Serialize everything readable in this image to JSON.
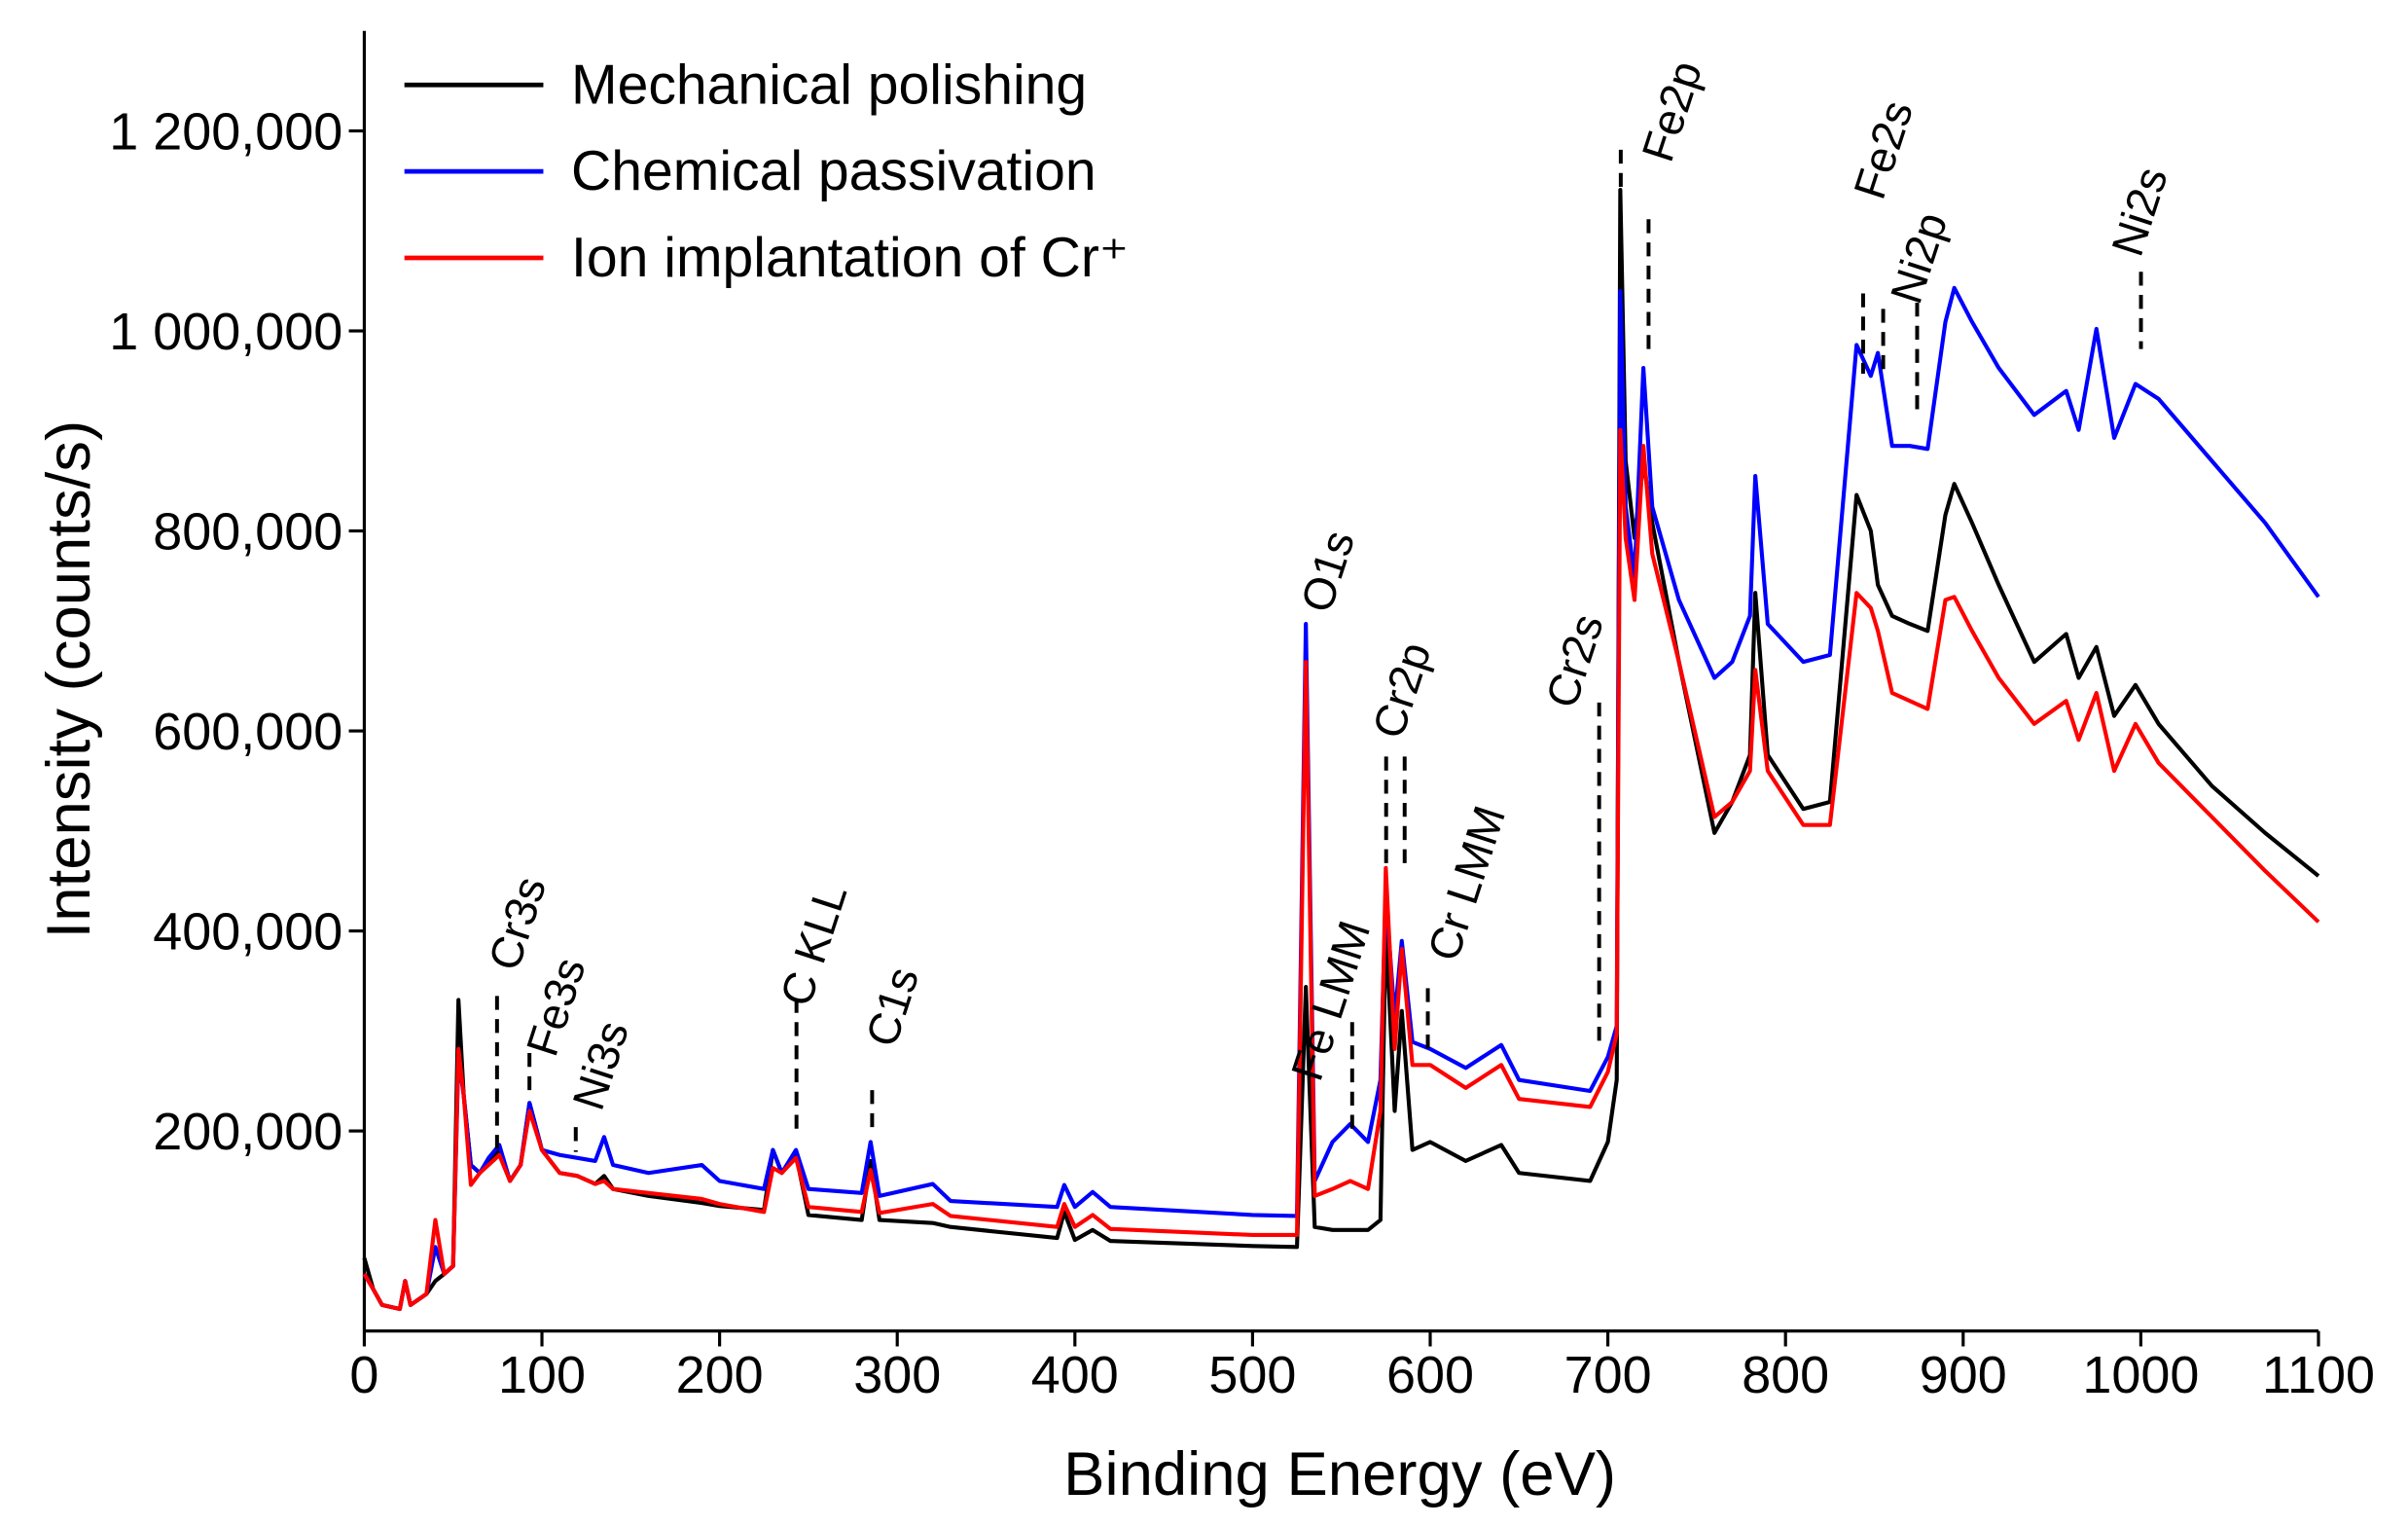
{
  "chart_data": {
    "type": "line",
    "xlabel": "Binding Energy (eV)",
    "ylabel": "Intensity (counts/s)",
    "xlim": [
      0,
      1100
    ],
    "ylim": [
      0,
      1300000
    ],
    "xticks": [
      0,
      100,
      200,
      300,
      400,
      500,
      600,
      700,
      800,
      900,
      1000,
      1100
    ],
    "yticks": [
      {
        "value": 200000,
        "label": "200,000"
      },
      {
        "value": 400000,
        "label": "400,000"
      },
      {
        "value": 600000,
        "label": "600,000"
      },
      {
        "value": 800000,
        "label": "800,000"
      },
      {
        "value": 1000000,
        "label": "1 000,000"
      },
      {
        "value": 1200000,
        "label": "1 200,000"
      }
    ],
    "legend": "upper left",
    "x": [
      0,
      5,
      10,
      20,
      23,
      26,
      35,
      40,
      45,
      50,
      53,
      56,
      60,
      65,
      70,
      76,
      82,
      88,
      93,
      100,
      110,
      120,
      130,
      135,
      140,
      160,
      190,
      200,
      225,
      230,
      235,
      243,
      250,
      280,
      285,
      290,
      320,
      330,
      390,
      394,
      400,
      410,
      420,
      500,
      525,
      530,
      535,
      545,
      555,
      565,
      572,
      575,
      580,
      584,
      590,
      600,
      620,
      640,
      650,
      690,
      700,
      705,
      707,
      710,
      715,
      720,
      725,
      740,
      760,
      770,
      780,
      783,
      790,
      810,
      825,
      840,
      848,
      852,
      860,
      870,
      880,
      890,
      895,
      905,
      920,
      940,
      958,
      965,
      975,
      985,
      997,
      1010,
      1040,
      1070,
      1100
    ],
    "series": [
      {
        "name": "Mechanical polishing",
        "color": "#000000",
        "values": [
          73000,
          42000,
          26000,
          22000,
          50000,
          26000,
          37000,
          50000,
          57000,
          65000,
          331000,
          235000,
          166000,
          158000,
          170000,
          181000,
          150000,
          166000,
          228000,
          181000,
          158000,
          155000,
          147000,
          155000,
          142000,
          135000,
          128000,
          125000,
          121000,
          181000,
          158000,
          176000,
          116000,
          111000,
          170000,
          111000,
          108000,
          104000,
          93000,
          119000,
          91000,
          101000,
          90000,
          85000,
          84000,
          344000,
          104000,
          101000,
          101000,
          101000,
          111000,
          406000,
          220000,
          320000,
          181000,
          189000,
          170000,
          186000,
          158000,
          150000,
          189000,
          251000,
          1141000,
          870000,
          793000,
          870000,
          808000,
          669000,
          498000,
          529000,
          576000,
          738000,
          576000,
          522000,
          529000,
          836000,
          800000,
          746000,
          715000,
          707000,
          700000,
          816000,
          847000,
          808000,
          746000,
          669000,
          697000,
          653000,
          684000,
          615000,
          646000,
          607000,
          545000,
          498000,
          455000
        ]
      },
      {
        "name": "Chemical passivation",
        "color": "#0000ff",
        "values": [
          57000,
          42000,
          26000,
          22000,
          50000,
          26000,
          37000,
          84000,
          57000,
          65000,
          274000,
          235000,
          166000,
          158000,
          173000,
          186000,
          150000,
          166000,
          228000,
          181000,
          176000,
          173000,
          170000,
          194000,
          166000,
          158000,
          166000,
          150000,
          142000,
          181000,
          158000,
          181000,
          142000,
          138000,
          189000,
          135000,
          147000,
          130000,
          124000,
          146000,
          124000,
          139000,
          124000,
          116000,
          115000,
          707000,
          150000,
          189000,
          207000,
          189000,
          251000,
          437000,
          313000,
          390000,
          289000,
          282000,
          263000,
          286000,
          251000,
          240000,
          274000,
          305000,
          1040000,
          824000,
          754000,
          963000,
          824000,
          731000,
          653000,
          669000,
          715000,
          855000,
          707000,
          669000,
          676000,
          986000,
          955000,
          978000,
          885000,
          885000,
          882000,
          1009000,
          1043000,
          1009000,
          963000,
          916000,
          940000,
          901000,
          1002000,
          893000,
          947000,
          932000,
          870000,
          808000,
          734000
        ]
      },
      {
        "name": "Ion implantation of Cr⁺",
        "color": "#ff0000",
        "values": [
          57000,
          42000,
          26000,
          22000,
          50000,
          26000,
          37000,
          111000,
          57000,
          65000,
          282000,
          235000,
          146000,
          158000,
          166000,
          176000,
          150000,
          166000,
          220000,
          181000,
          158000,
          155000,
          147000,
          150000,
          142000,
          138000,
          132000,
          127000,
          119000,
          163000,
          158000,
          173000,
          124000,
          119000,
          161000,
          118000,
          127000,
          115000,
          104000,
          127000,
          104000,
          116000,
          102000,
          96000,
          96000,
          669000,
          135000,
          142000,
          150000,
          142000,
          220000,
          463000,
          282000,
          382000,
          266000,
          266000,
          243000,
          266000,
          232000,
          224000,
          259000,
          297000,
          901000,
          793000,
          731000,
          885000,
          777000,
          669000,
          514000,
          529000,
          560000,
          661000,
          560000,
          506000,
          506000,
          738000,
          723000,
          700000,
          638000,
          630000,
          622000,
          731000,
          734000,
          700000,
          653000,
          607000,
          630000,
          591000,
          638000,
          560000,
          607000,
          568000,
          514000,
          460000,
          409000
        ]
      }
    ],
    "annotations": [
      {
        "text": "Cr3s"
      },
      {
        "text": "Fe3s"
      },
      {
        "text": "Ni3s"
      },
      {
        "text": "C KLL"
      },
      {
        "text": "C1s"
      },
      {
        "text": "O1s"
      },
      {
        "text": "Fe LMM"
      },
      {
        "text": "Cr2p"
      },
      {
        "text": "Cr LMM"
      },
      {
        "text": "Cr2s"
      },
      {
        "text": "Fe2p"
      },
      {
        "text": "Fe2s"
      },
      {
        "text": "Ni2p"
      },
      {
        "text": "Ni2s"
      }
    ]
  }
}
